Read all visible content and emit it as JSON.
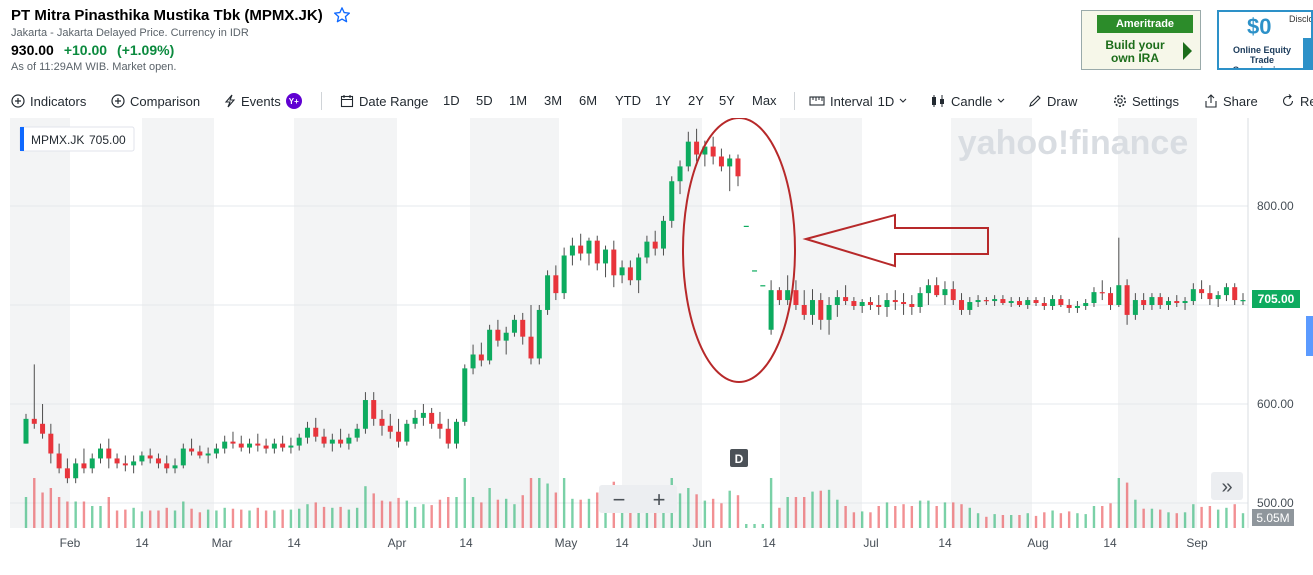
{
  "header": {
    "title": "PT Mitra Pinasthika Mustika Tbk (MPMX.JK)",
    "exchange_info": "Jakarta - Jakarta Delayed Price. Currency in IDR",
    "price": "930.00",
    "change": "+10.00",
    "change_pct": "(+1.09%)",
    "as_of": "As of 11:29AM WIB. Market open."
  },
  "ads": {
    "ameritrade_logo": "Ameritrade",
    "ameritrade_text": "Build your own IRA",
    "zero_big": "$0",
    "zero_disclosure": "Disclo",
    "zero_text": "Online Equity Trade Commissions"
  },
  "toolbar": {
    "indicators": "Indicators",
    "comparison": "Comparison",
    "events": "Events",
    "events_badge": "Y+",
    "date_range": "Date Range",
    "ranges": [
      "1D",
      "5D",
      "1M",
      "3M",
      "6M",
      "YTD",
      "1Y",
      "2Y",
      "5Y",
      "Max"
    ],
    "interval_label": "Interval",
    "interval_value": "1D",
    "chart_type": "Candle",
    "draw": "Draw",
    "settings": "Settings",
    "share": "Share",
    "reset": "Re"
  },
  "legend": {
    "symbol": "MPMX.JK",
    "value": "705.00"
  },
  "watermark": "yahoo!finance",
  "volume_label": "5.05M",
  "current_price_tag": "705.00",
  "event_marker": "D",
  "zoom": {
    "minus": "−",
    "plus": "+"
  },
  "scroll_label": "»",
  "colors": {
    "up": "#0dab5f",
    "down": "#e8343b",
    "accent": "#0f69ff",
    "annotation": "#b7292a"
  },
  "chart_data": {
    "type": "candlestick",
    "symbol": "MPMX.JK",
    "yaxis": {
      "ticks": [
        500,
        600,
        700,
        800
      ],
      "labels": [
        "500.00",
        "600.00",
        "",
        "800.00"
      ],
      "range": [
        490,
        900
      ]
    },
    "xaxis": {
      "labels": [
        "Feb",
        "14",
        "Mar",
        "14",
        "Apr",
        "14",
        "May",
        "14",
        "Jun",
        "14",
        "Jul",
        "14",
        "Aug",
        "14",
        "Sep"
      ]
    },
    "candles": [
      [
        560,
        590,
        560,
        585
      ],
      [
        585,
        640,
        575,
        580
      ],
      [
        580,
        600,
        565,
        570
      ],
      [
        570,
        580,
        540,
        550
      ],
      [
        550,
        560,
        530,
        535
      ],
      [
        535,
        545,
        520,
        525
      ],
      [
        525,
        545,
        520,
        540
      ],
      [
        540,
        555,
        530,
        535
      ],
      [
        535,
        550,
        530,
        545
      ],
      [
        545,
        560,
        540,
        555
      ],
      [
        555,
        565,
        535,
        545
      ],
      [
        545,
        550,
        535,
        540
      ],
      [
        540,
        548,
        532,
        538
      ],
      [
        538,
        548,
        530,
        542
      ],
      [
        542,
        552,
        538,
        548
      ],
      [
        548,
        555,
        540,
        545
      ],
      [
        545,
        550,
        535,
        540
      ],
      [
        540,
        548,
        530,
        535
      ],
      [
        535,
        545,
        530,
        538
      ],
      [
        538,
        560,
        535,
        555
      ],
      [
        555,
        565,
        548,
        552
      ],
      [
        552,
        558,
        545,
        548
      ],
      [
        548,
        556,
        540,
        550
      ],
      [
        550,
        560,
        545,
        555
      ],
      [
        555,
        568,
        550,
        562
      ],
      [
        562,
        572,
        555,
        560
      ],
      [
        560,
        568,
        552,
        556
      ],
      [
        556,
        565,
        550,
        560
      ],
      [
        560,
        570,
        552,
        558
      ],
      [
        558,
        565,
        550,
        555
      ],
      [
        555,
        565,
        550,
        560
      ],
      [
        560,
        568,
        552,
        556
      ],
      [
        556,
        566,
        550,
        558
      ],
      [
        558,
        570,
        553,
        566
      ],
      [
        566,
        582,
        560,
        576
      ],
      [
        576,
        586,
        562,
        567
      ],
      [
        567,
        575,
        556,
        560
      ],
      [
        560,
        570,
        552,
        564
      ],
      [
        564,
        575,
        556,
        560
      ],
      [
        560,
        570,
        554,
        566
      ],
      [
        566,
        580,
        562,
        575
      ],
      [
        575,
        612,
        570,
        604
      ],
      [
        604,
        612,
        578,
        585
      ],
      [
        585,
        594,
        568,
        578
      ],
      [
        578,
        590,
        565,
        572
      ],
      [
        572,
        585,
        556,
        562
      ],
      [
        562,
        584,
        558,
        580
      ],
      [
        580,
        594,
        575,
        586
      ],
      [
        586,
        600,
        578,
        591
      ],
      [
        591,
        596,
        575,
        580
      ],
      [
        580,
        592,
        565,
        575
      ],
      [
        575,
        585,
        555,
        560
      ],
      [
        560,
        585,
        555,
        582
      ],
      [
        582,
        640,
        578,
        636
      ],
      [
        636,
        660,
        630,
        650
      ],
      [
        650,
        662,
        638,
        644
      ],
      [
        644,
        680,
        640,
        675
      ],
      [
        675,
        685,
        658,
        664
      ],
      [
        664,
        678,
        650,
        672
      ],
      [
        672,
        690,
        668,
        685
      ],
      [
        685,
        692,
        660,
        668
      ],
      [
        668,
        700,
        640,
        646
      ],
      [
        646,
        700,
        640,
        695
      ],
      [
        695,
        735,
        690,
        730
      ],
      [
        730,
        740,
        705,
        712
      ],
      [
        712,
        758,
        706,
        750
      ],
      [
        750,
        768,
        740,
        760
      ],
      [
        760,
        772,
        745,
        752
      ],
      [
        752,
        768,
        740,
        765
      ],
      [
        765,
        770,
        735,
        742
      ],
      [
        742,
        760,
        728,
        756
      ],
      [
        756,
        765,
        718,
        730
      ],
      [
        730,
        745,
        722,
        738
      ],
      [
        738,
        745,
        720,
        725
      ],
      [
        725,
        752,
        712,
        748
      ],
      [
        748,
        770,
        742,
        764
      ],
      [
        764,
        775,
        750,
        757
      ],
      [
        757,
        790,
        750,
        785
      ],
      [
        785,
        830,
        778,
        825
      ],
      [
        825,
        846,
        812,
        840
      ],
      [
        840,
        875,
        835,
        865
      ],
      [
        865,
        878,
        845,
        852
      ],
      [
        852,
        866,
        840,
        860
      ],
      [
        860,
        870,
        842,
        850
      ],
      [
        850,
        858,
        835,
        840
      ],
      [
        840,
        852,
        815,
        848
      ],
      [
        848,
        852,
        820,
        830
      ],
      [
        780,
        780,
        780,
        780
      ],
      [
        735,
        735,
        735,
        735
      ],
      [
        720,
        720,
        720,
        720
      ],
      [
        675,
        725,
        670,
        715
      ],
      [
        715,
        718,
        700,
        705
      ],
      [
        705,
        730,
        700,
        715
      ],
      [
        715,
        725,
        695,
        700
      ],
      [
        700,
        715,
        685,
        690
      ],
      [
        690,
        716,
        680,
        705
      ],
      [
        705,
        712,
        675,
        685
      ],
      [
        685,
        708,
        670,
        700
      ],
      [
        700,
        715,
        688,
        708
      ],
      [
        708,
        720,
        700,
        704
      ],
      [
        704,
        708,
        695,
        699
      ],
      [
        699,
        706,
        692,
        703
      ],
      [
        703,
        708,
        695,
        700
      ],
      [
        700,
        710,
        690,
        698
      ],
      [
        698,
        712,
        688,
        705
      ],
      [
        705,
        715,
        695,
        703
      ],
      [
        703,
        712,
        690,
        701
      ],
      [
        701,
        710,
        690,
        698
      ],
      [
        698,
        718,
        692,
        712
      ],
      [
        712,
        726,
        700,
        720
      ],
      [
        720,
        728,
        708,
        710
      ],
      [
        710,
        724,
        700,
        716
      ],
      [
        716,
        724,
        700,
        705
      ],
      [
        705,
        712,
        690,
        695
      ],
      [
        695,
        708,
        690,
        703
      ],
      [
        703,
        710,
        698,
        705
      ],
      [
        705,
        708,
        700,
        704
      ],
      [
        704,
        710,
        699,
        706
      ],
      [
        706,
        710,
        700,
        702
      ],
      [
        702,
        708,
        698,
        704
      ],
      [
        704,
        708,
        698,
        700
      ],
      [
        700,
        708,
        696,
        705
      ],
      [
        705,
        708,
        699,
        702
      ],
      [
        702,
        708,
        695,
        699
      ],
      [
        699,
        710,
        695,
        706
      ],
      [
        706,
        710,
        698,
        700
      ],
      [
        700,
        706,
        692,
        697
      ],
      [
        697,
        704,
        692,
        699
      ],
      [
        699,
        706,
        695,
        702
      ],
      [
        702,
        718,
        698,
        713
      ],
      [
        713,
        725,
        705,
        712
      ],
      [
        712,
        718,
        695,
        700
      ],
      [
        700,
        768,
        698,
        720
      ],
      [
        720,
        726,
        680,
        690
      ],
      [
        690,
        712,
        685,
        705
      ],
      [
        705,
        712,
        695,
        700
      ],
      [
        700,
        712,
        695,
        708
      ],
      [
        708,
        712,
        696,
        700
      ],
      [
        700,
        708,
        695,
        704
      ],
      [
        704,
        710,
        698,
        702
      ],
      [
        702,
        708,
        695,
        704
      ],
      [
        704,
        722,
        700,
        716
      ],
      [
        716,
        725,
        706,
        712
      ],
      [
        712,
        720,
        700,
        706
      ],
      [
        706,
        714,
        698,
        710
      ],
      [
        710,
        722,
        704,
        718
      ],
      [
        718,
        722,
        700,
        705
      ],
      [
        705,
        712,
        700,
        705
      ]
    ],
    "volume_max_label": "5.05M",
    "last_price": 705.0
  }
}
